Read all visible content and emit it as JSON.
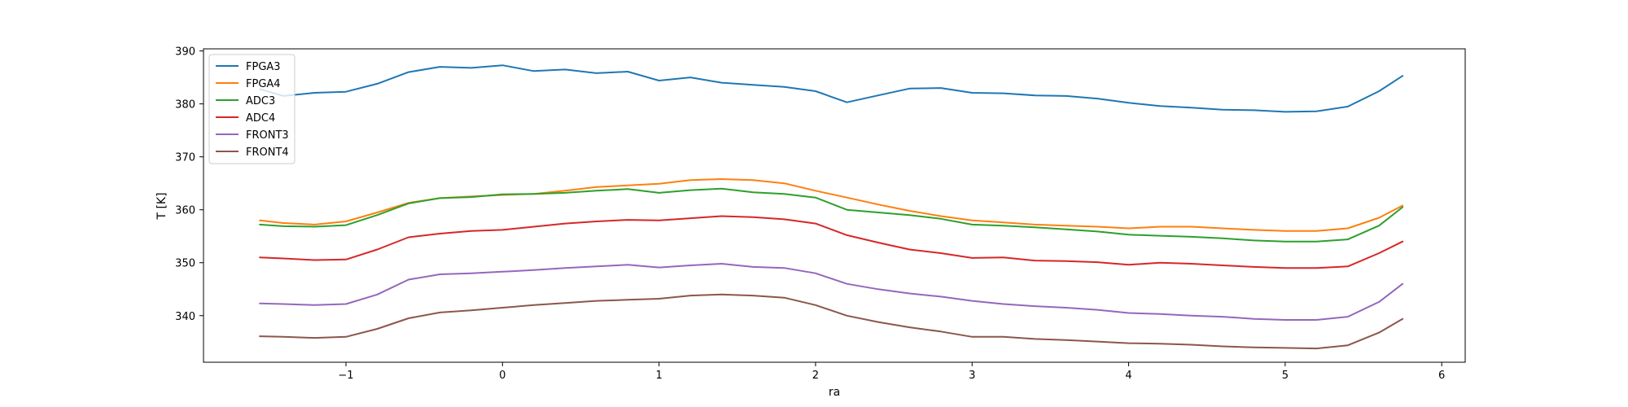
{
  "chart_data": {
    "type": "line",
    "title": "",
    "xlabel": "ra",
    "ylabel": "T [K]",
    "xlim": [
      -1.91,
      6.15
    ],
    "ylim": [
      331.2,
      390.4
    ],
    "xticks": [
      -1,
      0,
      1,
      2,
      3,
      4,
      5,
      6
    ],
    "xtick_labels": [
      "−1",
      "0",
      "1",
      "2",
      "3",
      "4",
      "5",
      "6"
    ],
    "yticks": [
      340,
      350,
      360,
      370,
      380,
      390
    ],
    "ytick_labels": [
      "340",
      "350",
      "360",
      "370",
      "380",
      "390"
    ],
    "grid": false,
    "legend_position": "top-left",
    "x": [
      -1.55,
      -1.4,
      -1.2,
      -1.0,
      -0.8,
      -0.6,
      -0.4,
      -0.2,
      0.0,
      0.2,
      0.4,
      0.6,
      0.8,
      1.0,
      1.2,
      1.4,
      1.6,
      1.8,
      2.0,
      2.2,
      2.4,
      2.6,
      2.8,
      3.0,
      3.2,
      3.4,
      3.6,
      3.8,
      4.0,
      4.2,
      4.4,
      4.6,
      4.8,
      5.0,
      5.2,
      5.4,
      5.6,
      5.75
    ],
    "series": [
      {
        "name": "FPGA3",
        "color": "#1f77b4",
        "values": [
          382.8,
          381.5,
          382.1,
          382.3,
          383.8,
          386.0,
          387.0,
          386.8,
          387.3,
          386.2,
          386.5,
          385.8,
          386.1,
          384.4,
          385.0,
          384.0,
          383.6,
          383.2,
          382.4,
          380.3,
          381.6,
          382.9,
          383.0,
          382.1,
          382.0,
          381.6,
          381.5,
          381.0,
          380.2,
          379.6,
          379.3,
          378.9,
          378.8,
          378.5,
          378.6,
          379.5,
          382.4,
          385.3
        ]
      },
      {
        "name": "FPGA4",
        "color": "#ff7f0e",
        "values": [
          358.0,
          357.5,
          357.2,
          357.8,
          359.5,
          361.3,
          362.2,
          362.5,
          362.8,
          363.0,
          363.6,
          364.3,
          364.6,
          364.9,
          365.6,
          365.8,
          365.6,
          365.0,
          363.6,
          362.3,
          361.0,
          359.8,
          358.8,
          358.0,
          357.6,
          357.2,
          357.0,
          356.8,
          356.5,
          356.8,
          356.8,
          356.5,
          356.2,
          356.0,
          356.0,
          356.5,
          358.5,
          360.8
        ]
      },
      {
        "name": "ADC3",
        "color": "#2ca02c",
        "values": [
          357.2,
          356.9,
          356.8,
          357.1,
          359.0,
          361.2,
          362.2,
          362.4,
          362.9,
          363.0,
          363.2,
          363.6,
          363.9,
          363.2,
          363.7,
          364.0,
          363.3,
          363.0,
          362.3,
          360.0,
          359.5,
          359.0,
          358.3,
          357.2,
          357.0,
          356.7,
          356.3,
          355.9,
          355.3,
          355.1,
          354.9,
          354.6,
          354.2,
          354.0,
          354.0,
          354.4,
          357.0,
          360.5
        ]
      },
      {
        "name": "ADC4",
        "color": "#d62728",
        "values": [
          351.0,
          350.8,
          350.5,
          350.6,
          352.5,
          354.8,
          355.5,
          356.0,
          356.2,
          356.8,
          357.4,
          357.8,
          358.1,
          358.0,
          358.4,
          358.8,
          358.6,
          358.2,
          357.4,
          355.2,
          353.8,
          352.5,
          351.8,
          350.9,
          351.0,
          350.4,
          350.3,
          350.1,
          349.6,
          350.0,
          349.8,
          349.5,
          349.2,
          349.0,
          349.0,
          349.3,
          351.8,
          354.0
        ]
      },
      {
        "name": "FRONT3",
        "color": "#9467bd",
        "values": [
          342.3,
          342.2,
          342.0,
          342.2,
          344.0,
          346.8,
          347.8,
          348.0,
          348.3,
          348.6,
          349.0,
          349.3,
          349.6,
          349.1,
          349.5,
          349.8,
          349.2,
          349.0,
          348.0,
          346.0,
          345.0,
          344.2,
          343.6,
          342.8,
          342.2,
          341.8,
          341.5,
          341.1,
          340.5,
          340.3,
          340.0,
          339.8,
          339.4,
          339.2,
          339.2,
          339.8,
          342.6,
          346.0
        ]
      },
      {
        "name": "FRONT4",
        "color": "#8c564b",
        "values": [
          336.1,
          336.0,
          335.8,
          336.0,
          337.5,
          339.5,
          340.6,
          341.0,
          341.5,
          342.0,
          342.4,
          342.8,
          343.0,
          343.2,
          343.8,
          344.0,
          343.8,
          343.4,
          342.0,
          340.0,
          338.8,
          337.8,
          337.0,
          336.0,
          336.0,
          335.6,
          335.4,
          335.1,
          334.8,
          334.7,
          334.5,
          334.2,
          334.0,
          333.9,
          333.8,
          334.4,
          336.8,
          339.4
        ]
      }
    ]
  }
}
